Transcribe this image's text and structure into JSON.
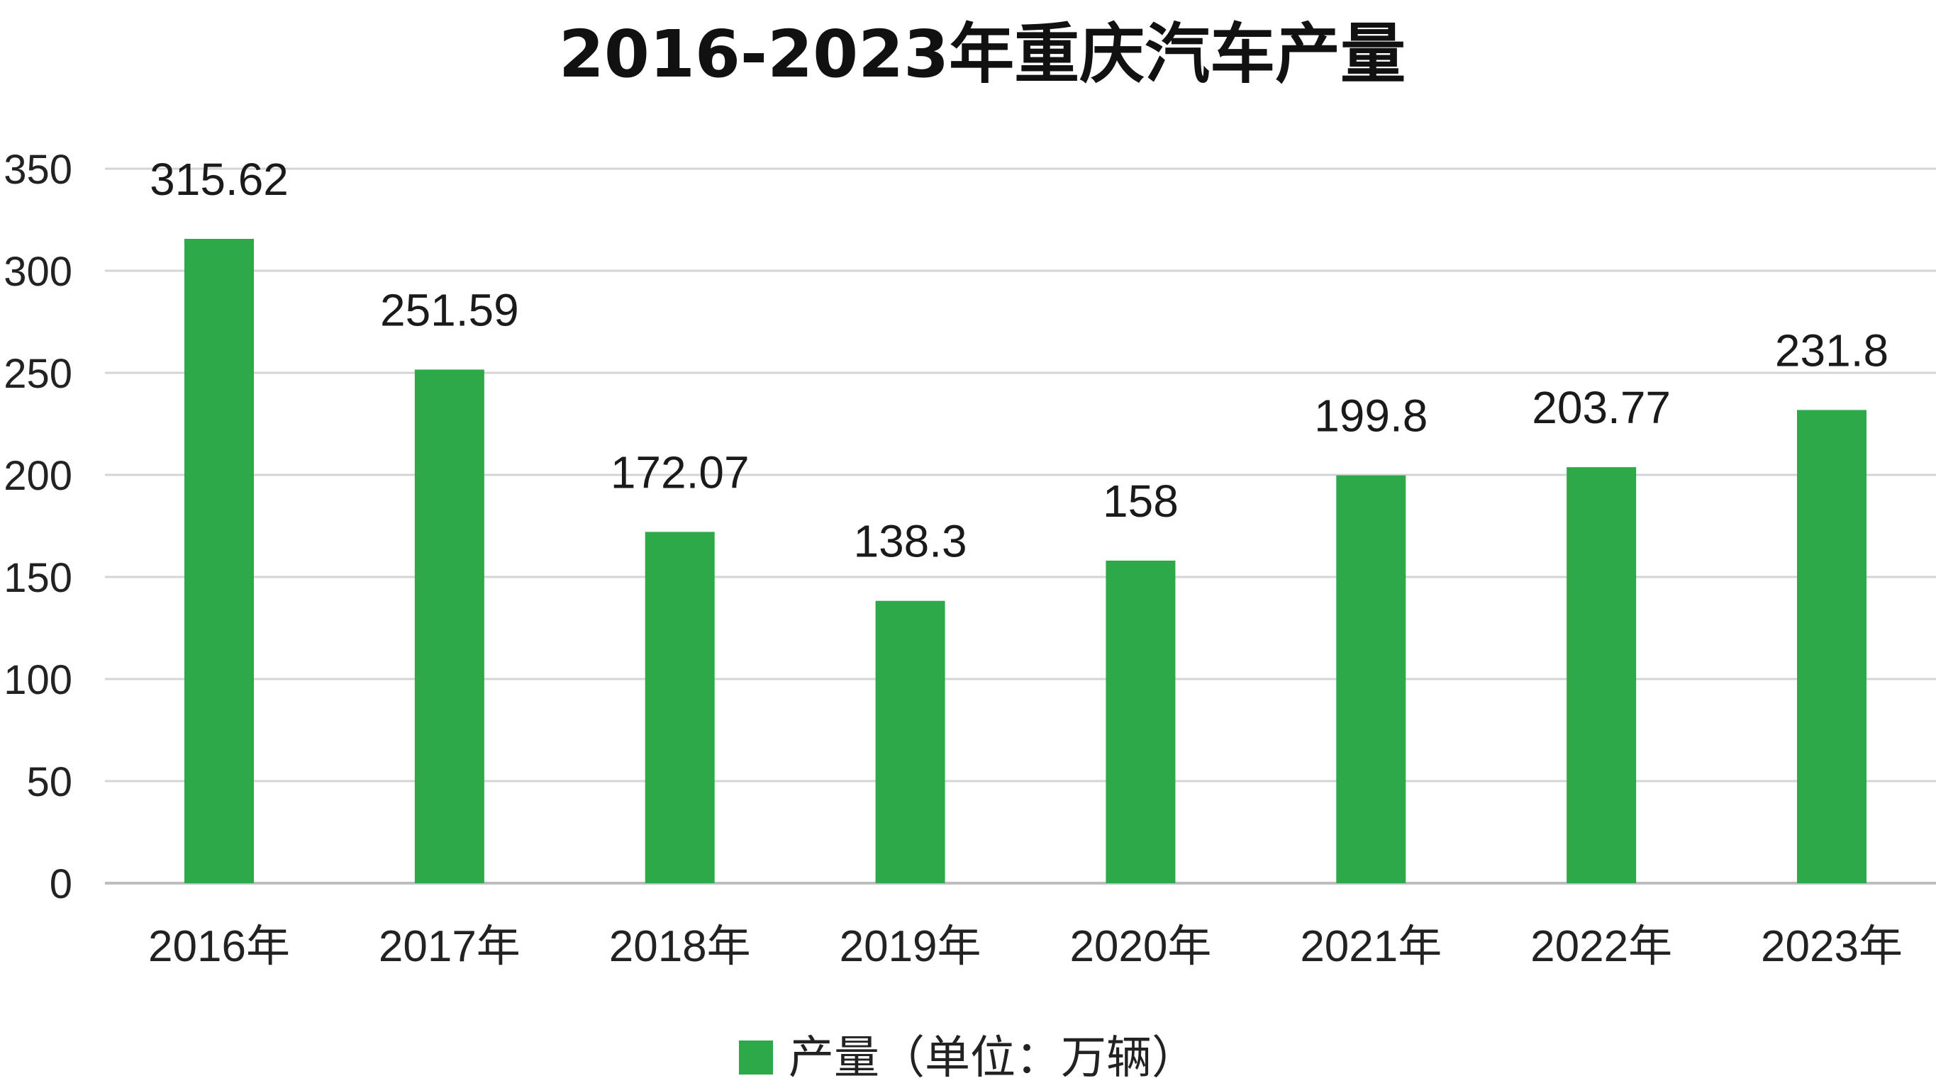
{
  "chart_data": {
    "type": "bar",
    "title": "2016-2023年重庆汽车产量",
    "categories": [
      "2016年",
      "2017年",
      "2018年",
      "2019年",
      "2020年",
      "2021年",
      "2022年",
      "2023年"
    ],
    "series": [
      {
        "name": "产量（单位：万辆）",
        "values": [
          315.62,
          251.59,
          172.07,
          138.3,
          158,
          199.8,
          203.77,
          231.8
        ],
        "data_labels": [
          "315.62",
          "251.59",
          "172.07",
          "138.3",
          "158",
          "199.8",
          "203.77",
          "231.8"
        ],
        "color": "#2ea94a"
      }
    ],
    "ylim": [
      0,
      350
    ],
    "yticks": [
      "0",
      "50",
      "100",
      "150",
      "200",
      "250",
      "300",
      "350"
    ],
    "xlabel": "",
    "ylabel": "",
    "grid": true,
    "legend": "bottom-center",
    "colors": {
      "bar": "#2ea94a",
      "grid": "#d4d4d4",
      "axis": "#bdbdbd"
    }
  }
}
